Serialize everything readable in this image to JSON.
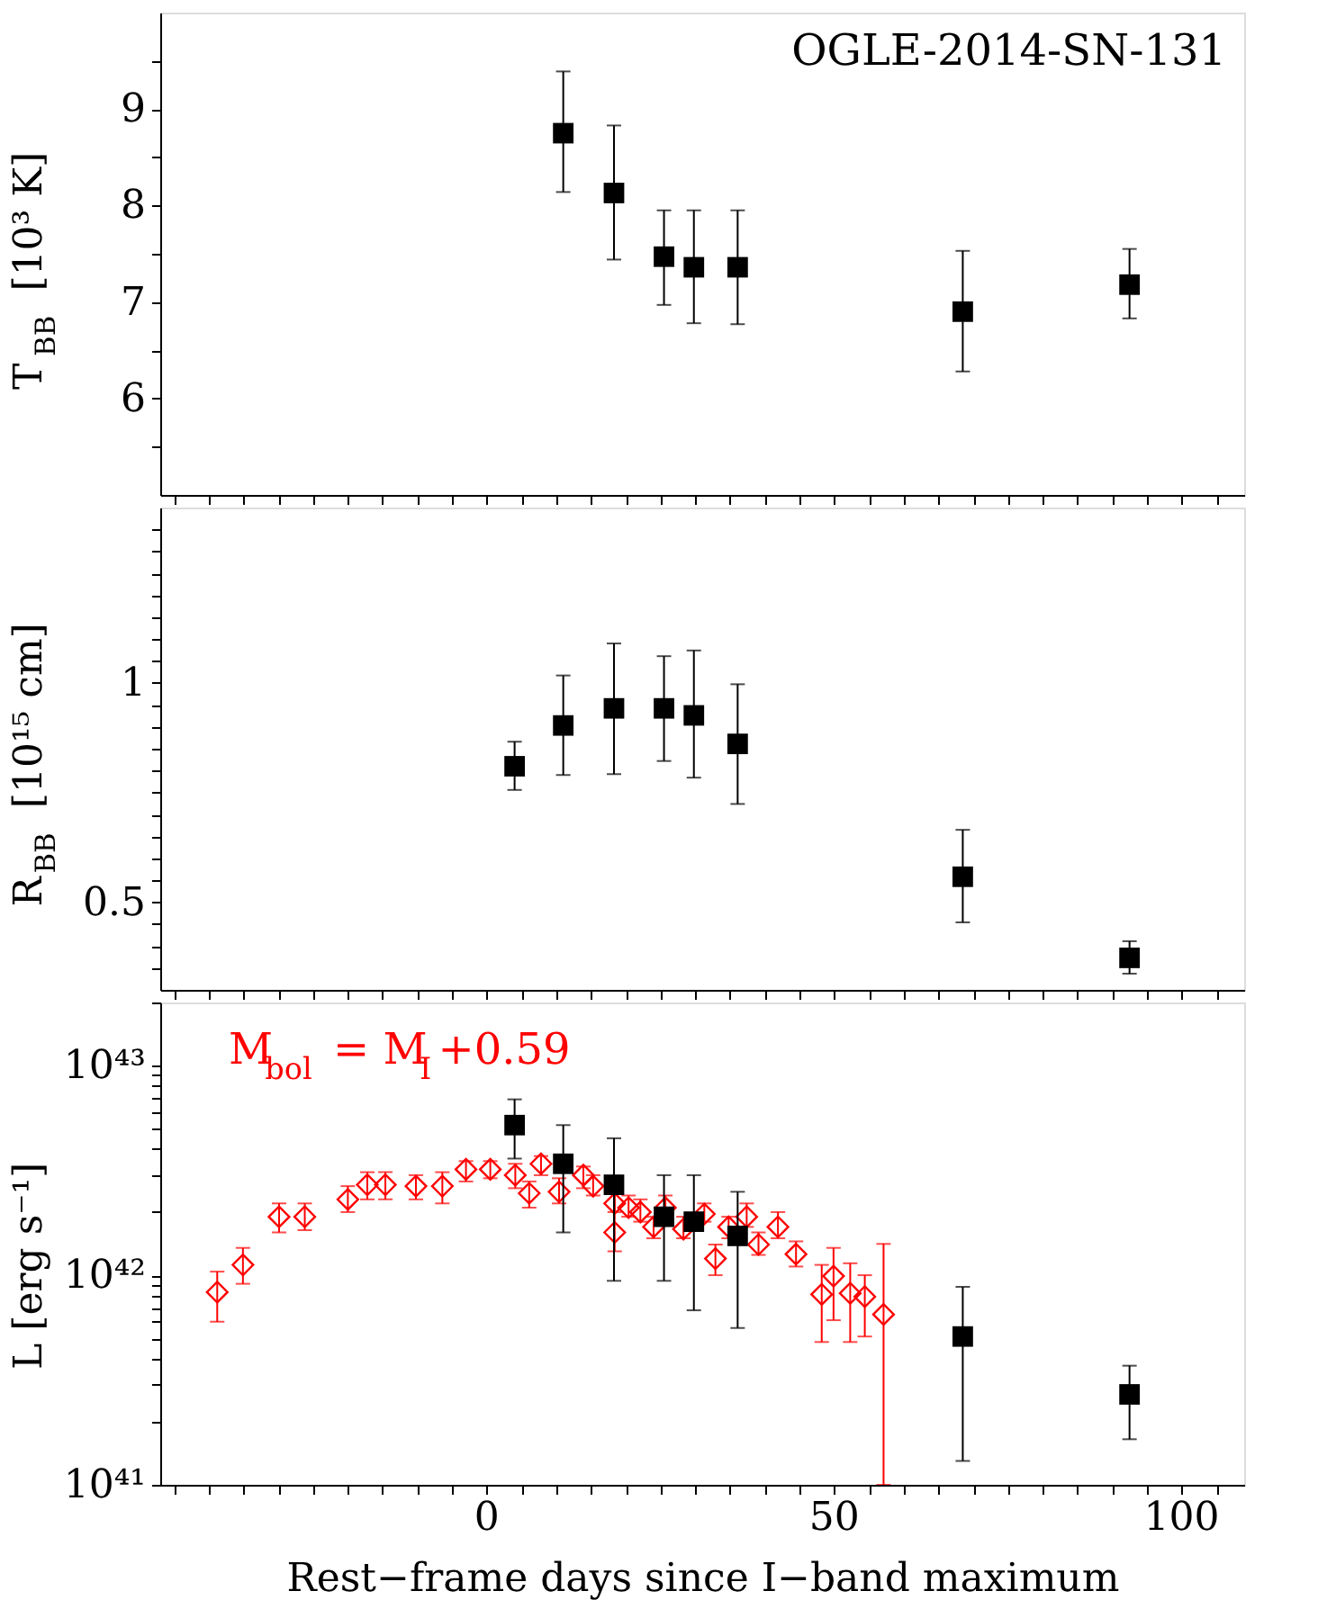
{
  "chart_data": [
    {
      "type": "scatter",
      "ylabel": "T$_{BB}$ [10³ K]",
      "annotations": [
        "OGLE-2014-SN-131"
      ],
      "xlim": [
        -47,
        109
      ],
      "ylim": [
        5,
        10
      ],
      "xticks": [
        {
          "value": -45,
          "label": null
        },
        {
          "value": -40,
          "label": null
        },
        {
          "value": -35,
          "label": null
        },
        {
          "value": -30,
          "label": null
        },
        {
          "value": -25,
          "label": null
        },
        {
          "value": -20,
          "label": null
        },
        {
          "value": -15,
          "label": null
        },
        {
          "value": -10,
          "label": null
        },
        {
          "value": -5,
          "label": null
        },
        0,
        {
          "value": 5,
          "label": null
        },
        {
          "value": 10,
          "label": null
        },
        {
          "value": 15,
          "label": null
        },
        {
          "value": 20,
          "label": null
        },
        {
          "value": 25,
          "label": null
        },
        {
          "value": 30,
          "label": null
        },
        {
          "value": 35,
          "label": null
        },
        {
          "value": 40,
          "label": null
        },
        {
          "value": 45,
          "label": null
        },
        50,
        {
          "value": 55,
          "label": null
        },
        {
          "value": 60,
          "label": null
        },
        {
          "value": 65,
          "label": null
        },
        {
          "value": 70,
          "label": null
        },
        {
          "value": 75,
          "label": null
        },
        {
          "value": 80,
          "label": null
        },
        {
          "value": 85,
          "label": null
        },
        {
          "value": 90,
          "label": null
        },
        {
          "value": 95,
          "label": null
        },
        100,
        {
          "value": 105,
          "label": null
        }
      ],
      "yticks": [
        {
          "value": 5.5,
          "label": null
        },
        6,
        {
          "value": 6.5,
          "label": null
        },
        7,
        {
          "value": 7.5,
          "label": null
        },
        8,
        {
          "value": 8.5,
          "label": null
        },
        9,
        {
          "value": 9.5,
          "label": null
        }
      ],
      "tick_labels": "y",
      "series": [
        {
          "color": "#000000",
          "marker": "square",
          "x": [
            11,
            18.3,
            25.5,
            29.8,
            36.1,
            68.5,
            92.5
          ],
          "values": [
            8.75,
            8.13,
            7.47,
            7.36,
            7.36,
            6.9,
            7.18
          ],
          "errors": [
            [
              8.14,
              9.39
            ],
            [
              7.44,
              8.83
            ],
            [
              6.97,
              7.95
            ],
            [
              6.78,
              7.95
            ],
            [
              6.77,
              7.95
            ],
            [
              6.28,
              7.53
            ],
            [
              6.83,
              7.55
            ]
          ]
        }
      ]
    },
    {
      "type": "scatter",
      "ylabel": "R$_{BB}$ [10¹⁵ cm]",
      "xlim": [
        -47,
        109
      ],
      "ylim": [
        0.3,
        1.4
      ],
      "xticks": [
        {
          "value": -45,
          "label": null
        },
        {
          "value": -40,
          "label": null
        },
        {
          "value": -35,
          "label": null
        },
        {
          "value": -30,
          "label": null
        },
        {
          "value": -25,
          "label": null
        },
        {
          "value": -20,
          "label": null
        },
        {
          "value": -15,
          "label": null
        },
        {
          "value": -10,
          "label": null
        },
        {
          "value": -5,
          "label": null
        },
        0,
        {
          "value": 5,
          "label": null
        },
        {
          "value": 10,
          "label": null
        },
        {
          "value": 15,
          "label": null
        },
        {
          "value": 20,
          "label": null
        },
        {
          "value": 25,
          "label": null
        },
        {
          "value": 30,
          "label": null
        },
        {
          "value": 35,
          "label": null
        },
        {
          "value": 40,
          "label": null
        },
        {
          "value": 45,
          "label": null
        },
        50,
        {
          "value": 55,
          "label": null
        },
        {
          "value": 60,
          "label": null
        },
        {
          "value": 65,
          "label": null
        },
        {
          "value": 70,
          "label": null
        },
        {
          "value": 75,
          "label": null
        },
        {
          "value": 80,
          "label": null
        },
        {
          "value": 85,
          "label": null
        },
        {
          "value": 90,
          "label": null
        },
        {
          "value": 95,
          "label": null
        },
        100,
        {
          "value": 105,
          "label": null
        }
      ],
      "yticks": [
        {
          "value": 0.35,
          "label": null
        },
        {
          "value": 0.4,
          "label": null
        },
        {
          "value": 0.45,
          "label": null
        },
        0.5,
        {
          "value": 0.55,
          "label": null
        },
        {
          "value": 0.6,
          "label": null
        },
        {
          "value": 0.65,
          "label": null
        },
        {
          "value": 0.7,
          "label": null
        },
        {
          "value": 0.75,
          "label": null
        },
        {
          "value": 0.8,
          "label": null
        },
        {
          "value": 0.85,
          "label": null
        },
        {
          "value": 0.9,
          "label": null
        },
        {
          "value": 0.95,
          "label": null
        },
        1,
        {
          "value": 1.05,
          "label": null
        },
        {
          "value": 1.1,
          "label": null
        },
        {
          "value": 1.15,
          "label": null
        },
        {
          "value": 1.2,
          "label": null
        },
        {
          "value": 1.25,
          "label": null
        },
        {
          "value": 1.3,
          "label": null
        },
        {
          "value": 1.35,
          "label": null
        }
      ],
      "tick_labels": "y",
      "series": [
        {
          "color": "#000000",
          "marker": "square",
          "x": [
            4,
            11,
            18.3,
            25.5,
            29.8,
            36.1,
            68.5,
            92.5
          ],
          "values": [
            0.81,
            0.903,
            0.942,
            0.942,
            0.926,
            0.861,
            0.558,
            0.373
          ],
          "errors": [
            [
              0.756,
              0.866
            ],
            [
              0.79,
              1.017
            ],
            [
              0.792,
              1.09
            ],
            [
              0.822,
              1.061
            ],
            [
              0.784,
              1.074
            ],
            [
              0.724,
              0.997
            ],
            [
              0.454,
              0.665
            ],
            [
              0.337,
              0.411
            ]
          ]
        }
      ]
    },
    {
      "type": "scatter",
      "xlabel": "Rest−frame days since I−band maximum",
      "ylabel": "L [erg s⁻¹]",
      "log": "y",
      "xlim": [
        -47,
        109
      ],
      "ylim": [
        1e+41,
        2e+43
      ],
      "xticks": [
        {
          "value": -45,
          "label": null
        },
        {
          "value": -40,
          "label": null
        },
        {
          "value": -35,
          "label": null
        },
        {
          "value": -30,
          "label": null
        },
        {
          "value": -25,
          "label": null
        },
        {
          "value": -20,
          "label": null
        },
        {
          "value": -15,
          "label": null
        },
        {
          "value": -10,
          "label": null
        },
        {
          "value": -5,
          "label": null
        },
        0,
        {
          "value": 5,
          "label": null
        },
        {
          "value": 10,
          "label": null
        },
        {
          "value": 15,
          "label": null
        },
        {
          "value": 20,
          "label": null
        },
        {
          "value": 25,
          "label": null
        },
        {
          "value": 30,
          "label": null
        },
        {
          "value": 35,
          "label": null
        },
        {
          "value": 40,
          "label": null
        },
        {
          "value": 45,
          "label": null
        },
        50,
        {
          "value": 55,
          "label": null
        },
        {
          "value": 60,
          "label": null
        },
        {
          "value": 65,
          "label": null
        },
        {
          "value": 70,
          "label": null
        },
        {
          "value": 75,
          "label": null
        },
        {
          "value": 80,
          "label": null
        },
        {
          "value": 85,
          "label": null
        },
        {
          "value": 90,
          "label": null
        },
        {
          "value": 95,
          "label": null
        },
        100,
        {
          "value": 105,
          "label": null
        }
      ],
      "yticks": [
        {
          "value": 1e+41,
          "label": "10⁴¹"
        },
        {
          "value": 2e+41,
          "label": null
        },
        {
          "value": 3e+41,
          "label": null
        },
        {
          "value": 4e+41,
          "label": null
        },
        {
          "value": 5e+41,
          "label": null
        },
        {
          "value": 6e+41,
          "label": null
        },
        {
          "value": 7e+41,
          "label": null
        },
        {
          "value": 8e+41,
          "label": null
        },
        {
          "value": 9e+41,
          "label": null
        },
        {
          "value": 1e+42,
          "label": "10⁴²"
        },
        {
          "value": 2e+42,
          "label": null
        },
        {
          "value": 3e+42,
          "label": null
        },
        {
          "value": 4e+42,
          "label": null
        },
        {
          "value": 5e+42,
          "label": null
        },
        {
          "value": 6e+42,
          "label": null
        },
        {
          "value": 7e+42,
          "label": null
        },
        {
          "value": 8e+42,
          "label": null
        },
        {
          "value": 9e+42,
          "label": null
        },
        {
          "value": 1e+43,
          "label": "10⁴³"
        },
        {
          "value": 2e+43,
          "label": null
        }
      ],
      "series": [
        {
          "name": "M$_{bol}$ = M$_{I}$+0.59",
          "color": "#ff0000",
          "marker": "diamond",
          "x": [
            -38.8,
            -35.1,
            -29.9,
            -26.2,
            -20.0,
            -17.2,
            -14.6,
            -10.2,
            -6.4,
            -3.0,
            0.5,
            4.1,
            6.1,
            7.8,
            10.4,
            13.9,
            15.3,
            18.4,
            18.4,
            20.4,
            22.1,
            24.0,
            25.7,
            28.3,
            31.3,
            32.9,
            34.8,
            37.4,
            39.1,
            41.9,
            44.5,
            48.2,
            49.9,
            52.3,
            54.4,
            57.1
          ],
          "values": [
            8.3e+41,
            1.12e+42,
            1.9e+42,
            1.9e+42,
            2.3e+42,
            2.7e+42,
            2.7e+42,
            2.66e+42,
            2.66e+42,
            3.2e+42,
            3.2e+42,
            3e+42,
            2.46e+42,
            3.4e+42,
            2.5e+42,
            3e+42,
            2.66e+42,
            1.6e+42,
            2.2e+42,
            2.1e+42,
            2e+42,
            1.7e+42,
            2.1e+42,
            1.66e+42,
            1.96e+42,
            1.2e+42,
            1.7e+42,
            1.9e+42,
            1.4e+42,
            1.7e+42,
            1.26e+42,
            8.1e+41,
            9.9e+41,
            8.2e+41,
            7.9e+41,
            6.5e+41
          ],
          "errors": [
            [
              6e+41,
              1.04e+42
            ],
            [
              9.1e+41,
              1.35e+42
            ],
            [
              1.6e+42,
              2.2e+42
            ],
            [
              1.64e+42,
              2.2e+42
            ],
            [
              2e+42,
              2.66e+42
            ],
            [
              2.3e+42,
              3.1e+42
            ],
            [
              2.3e+42,
              3.1e+42
            ],
            [
              2.3e+42,
              3e+42
            ],
            [
              2.2e+42,
              3.1e+42
            ],
            [
              2.8e+42,
              3.5e+42
            ],
            [
              2.9e+42,
              3.5e+42
            ],
            [
              2.6e+42,
              3.4e+42
            ],
            [
              2.1e+42,
              2.8e+42
            ],
            [
              3e+42,
              3.7e+42
            ],
            [
              2.2e+42,
              2.9e+42
            ],
            [
              2.6e+42,
              3.3e+42
            ],
            [
              2.4e+42,
              3e+42
            ],
            [
              1.3e+42,
              2.46e+42
            ],
            [
              2e+42,
              2.5e+42
            ],
            [
              1.9e+42,
              2.4e+42
            ],
            [
              1.8e+42,
              2.3e+42
            ],
            [
              1.5e+42,
              1.9e+42
            ],
            [
              2.1e+42,
              2.4e+42
            ],
            [
              1.5e+42,
              1.9e+42
            ],
            [
              1.8e+42,
              2.2e+42
            ],
            [
              1e+42,
              1.4e+42
            ],
            [
              1.5e+42,
              1.9e+42
            ],
            [
              1.7e+42,
              2.2e+42
            ],
            [
              1.25e+42,
              1.6e+42
            ],
            [
              1.5e+42,
              2e+42
            ],
            [
              1.1e+42,
              1.45e+42
            ],
            [
              4.8e+41,
              1.12e+42
            ],
            [
              6.1e+41,
              1.35e+42
            ],
            [
              4.8e+41,
              1.14e+42
            ],
            [
              5.1e+41,
              1e+42
            ],
            [
              1e+41,
              1.41e+42
            ]
          ]
        },
        {
          "color": "#000000",
          "marker": "square",
          "x": [
            4,
            11,
            18.3,
            25.5,
            29.8,
            36.1,
            68.5,
            92.5
          ],
          "values": [
            5.2e+42,
            3.4e+42,
            2.7e+42,
            1.9e+42,
            1.8e+42,
            1.54e+42,
            5.1e+41,
            2.7e+41
          ],
          "errors": [
            [
              3.6e+42,
              6.9e+42
            ],
            [
              1.6e+42,
              5.2e+42
            ],
            [
              9.4e+41,
              4.5e+42
            ],
            [
              9.4e+41,
              3e+42
            ],
            [
              6.8e+41,
              3e+42
            ],
            [
              5.6e+41,
              2.5e+42
            ],
            [
              1.3e+41,
              8.8e+41
            ],
            [
              1.65e+41,
              3.7e+41
            ]
          ]
        }
      ]
    }
  ]
}
